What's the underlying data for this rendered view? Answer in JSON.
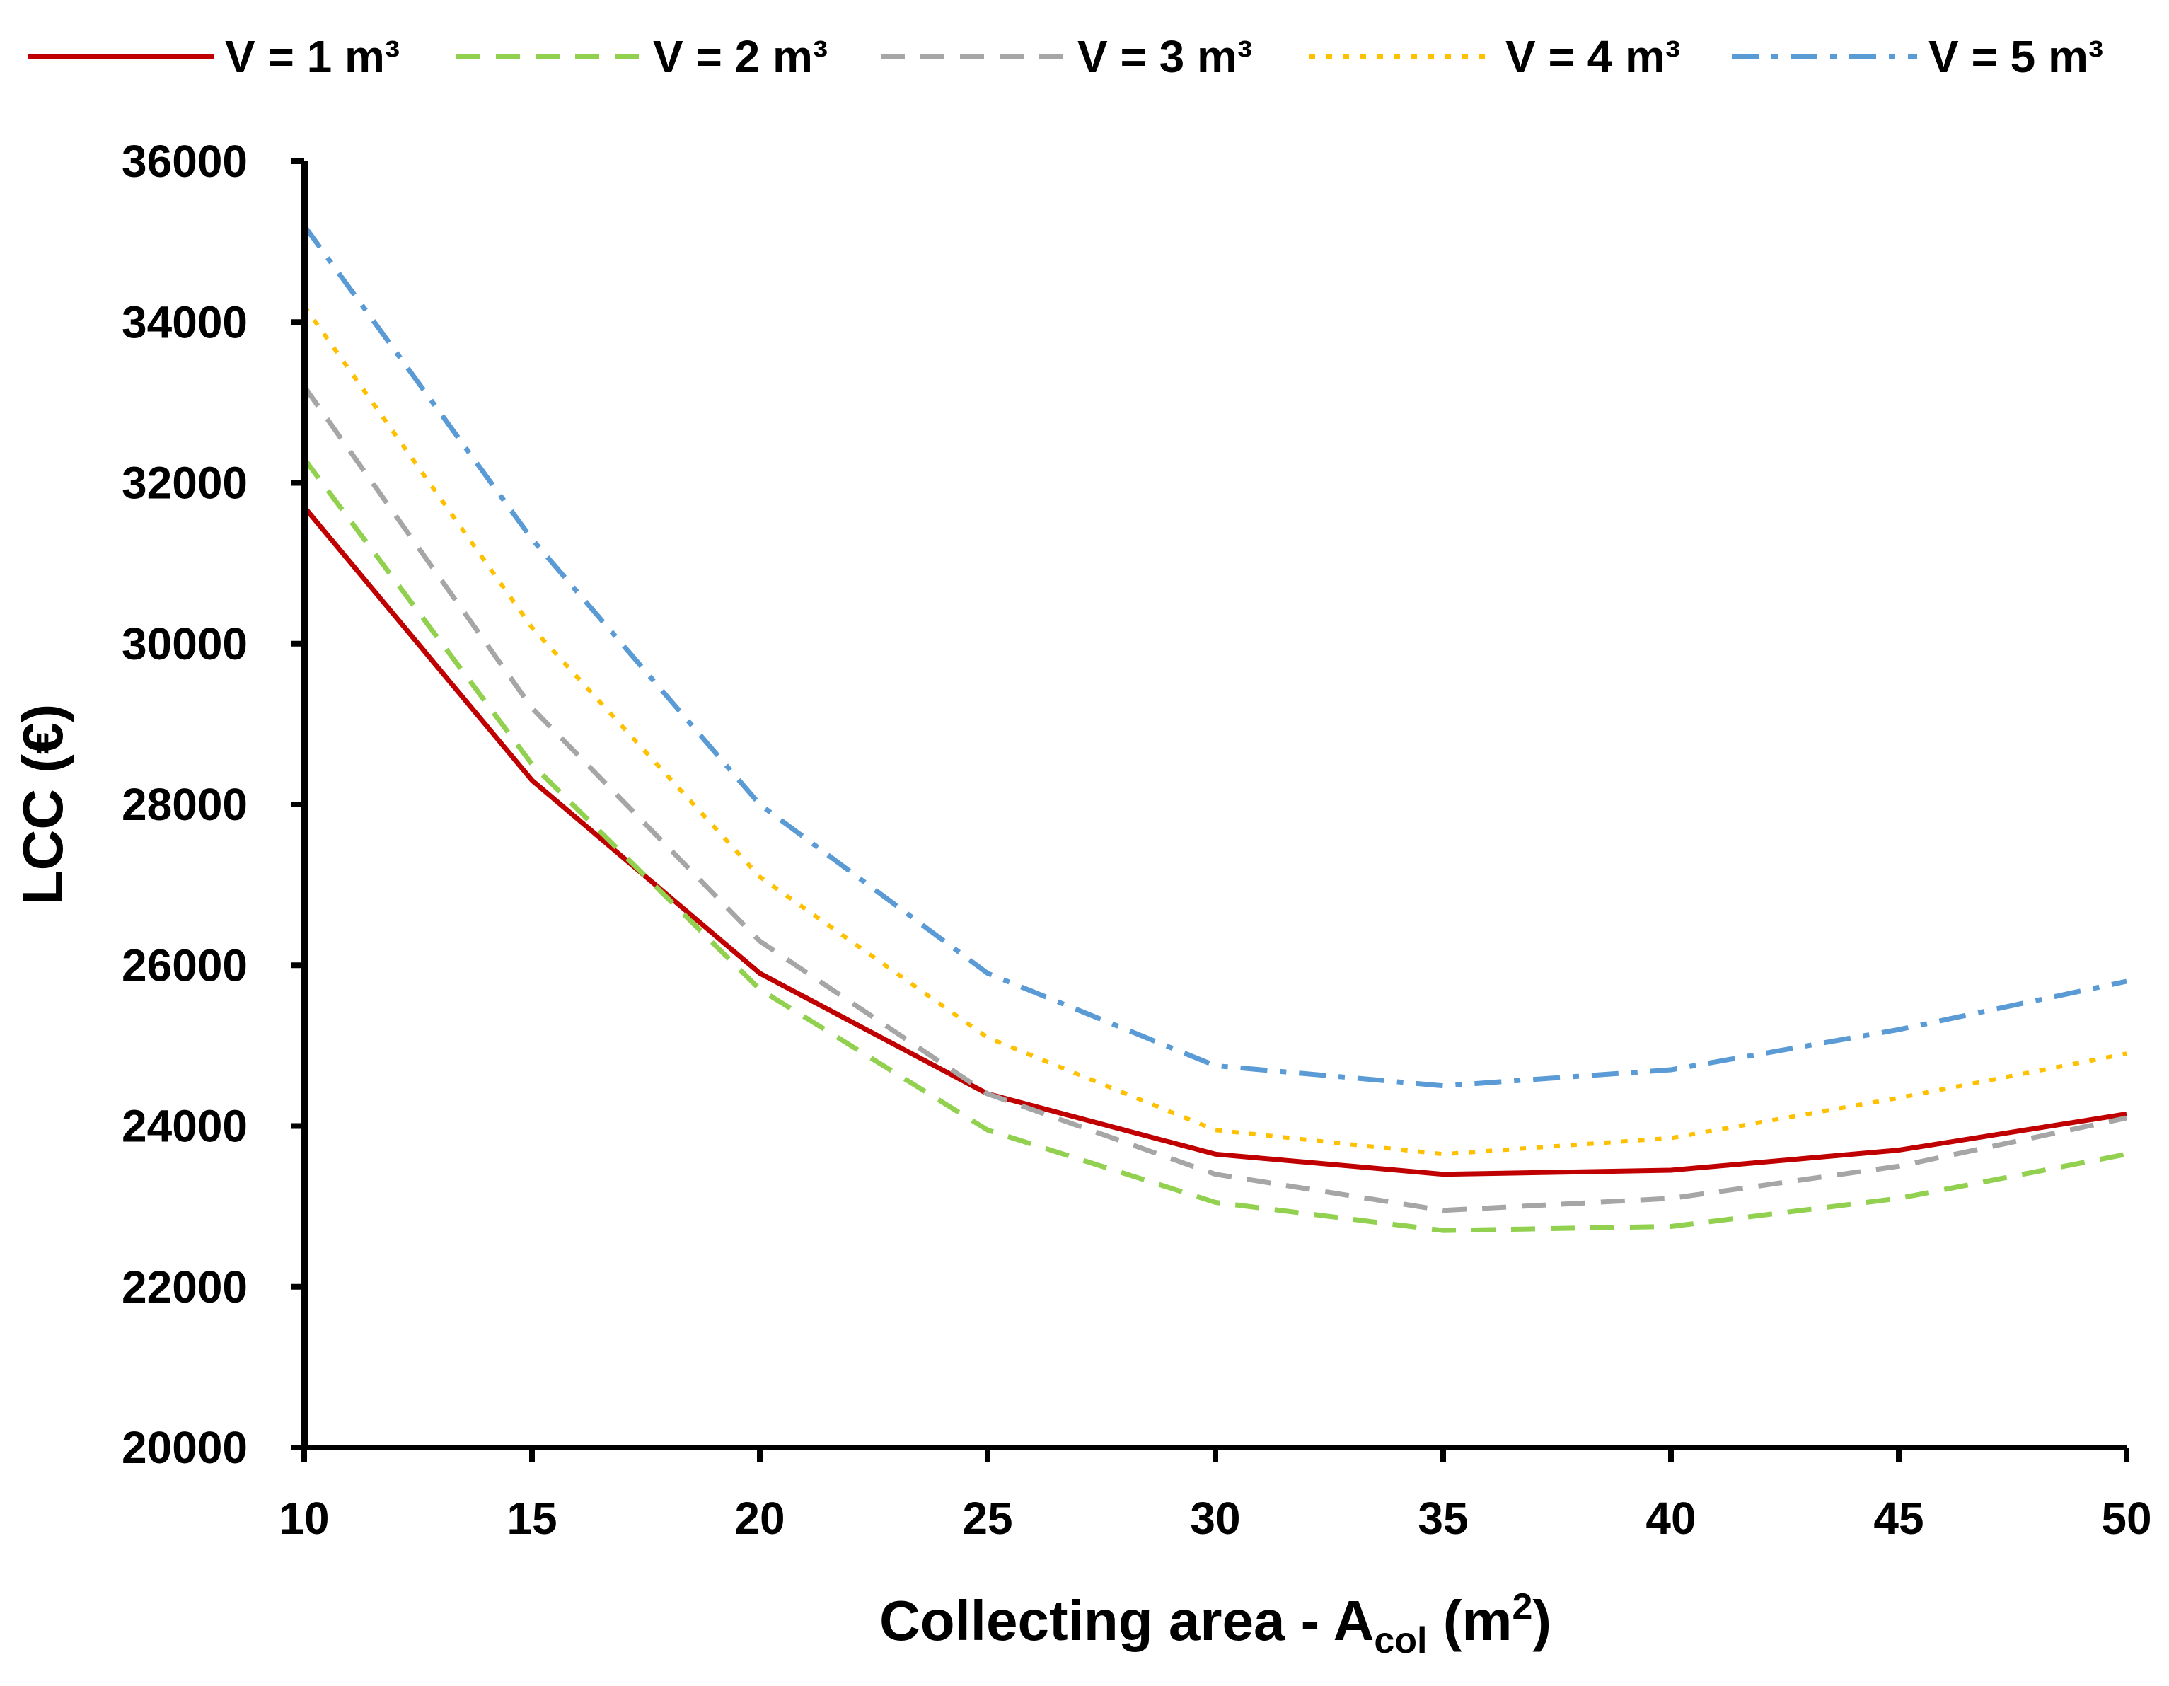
{
  "chart_data": {
    "type": "line",
    "title": "",
    "x": [
      10,
      15,
      20,
      25,
      30,
      35,
      40,
      45,
      50
    ],
    "xlim": [
      10,
      50
    ],
    "ylim": [
      20000,
      36000
    ],
    "xticks": [
      "10",
      "15",
      "20",
      "25",
      "30",
      "35",
      "40",
      "45",
      "50"
    ],
    "yticks": [
      "20000",
      "22000",
      "24000",
      "26000",
      "28000",
      "30000",
      "32000",
      "34000",
      "36000"
    ],
    "xlabel": {
      "main": "Collecting area - A",
      "sub": "col",
      "unit": " (m",
      "sup": "2",
      "close": ")"
    },
    "ylabel": "LCC (€)",
    "grid": false,
    "legend_position": "top",
    "series": [
      {
        "name": "V = 1 m³",
        "color": "#C00000",
        "dash": "solid",
        "values": [
          31700,
          28300,
          25900,
          24400,
          23650,
          23400,
          23450,
          23700,
          24150
        ]
      },
      {
        "name": "V = 2 m³",
        "color": "#92D050",
        "dash": "dash",
        "values": [
          32300,
          28500,
          25700,
          23950,
          23050,
          22700,
          22750,
          23100,
          23650
        ]
      },
      {
        "name": "V = 3 m³",
        "color": "#A6A6A6",
        "dash": "dash",
        "values": [
          33200,
          29200,
          26300,
          24400,
          23400,
          22950,
          23100,
          23500,
          24100
        ]
      },
      {
        "name": "V = 4 m³",
        "color": "#FFC000",
        "dash": "dot",
        "values": [
          34200,
          30200,
          27100,
          25100,
          23950,
          23650,
          23850,
          24350,
          24900
        ]
      },
      {
        "name": "V = 5 m³",
        "color": "#5B9BD5",
        "dash": "dashdot",
        "values": [
          35200,
          31300,
          28000,
          25900,
          24750,
          24500,
          24700,
          25200,
          25800
        ]
      }
    ]
  }
}
